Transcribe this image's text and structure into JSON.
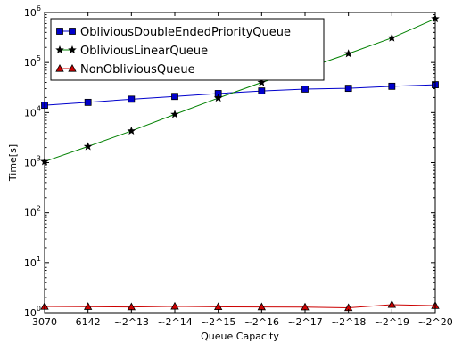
{
  "chart_data": {
    "type": "line",
    "xlabel": "Queue Capacity",
    "ylabel": "Time[s]",
    "categories": [
      "3070",
      "6142",
      "~2^13",
      "~2^14",
      "~2^15",
      "~2^16",
      "~2^17",
      "~2^18",
      "~2^19",
      "~2^20"
    ],
    "y_scale": "log",
    "ylim": [
      1,
      1000000
    ],
    "y_ticks": [
      {
        "value": 1,
        "base": "10",
        "exp": "0"
      },
      {
        "value": 10,
        "base": "10",
        "exp": "1"
      },
      {
        "value": 100,
        "base": "10",
        "exp": "2"
      },
      {
        "value": 1000,
        "base": "10",
        "exp": "3"
      },
      {
        "value": 10000,
        "base": "10",
        "exp": "4"
      },
      {
        "value": 100000,
        "base": "10",
        "exp": "5"
      },
      {
        "value": 1000000,
        "base": "10",
        "exp": "6"
      }
    ],
    "grid": false,
    "legend_position": "top-left",
    "series": [
      {
        "name": "ObliviousDoubleEndedPriorityQueue",
        "color": "#0000cc",
        "marker": "square",
        "values": [
          14000,
          16000,
          18500,
          21000,
          24000,
          27000,
          29500,
          30500,
          33500,
          36000
        ]
      },
      {
        "name": "ObliviousLinearQueue",
        "color": "#008000",
        "marker": "star",
        "values": [
          1050,
          2100,
          4300,
          9200,
          19500,
          40000,
          75000,
          150000,
          310000,
          750000
        ]
      },
      {
        "name": "NonObliviousQueue",
        "color": "#cc0000",
        "marker": "triangle",
        "values": [
          1.33,
          1.32,
          1.3,
          1.34,
          1.31,
          1.3,
          1.29,
          1.25,
          1.45,
          1.38
        ]
      }
    ]
  }
}
